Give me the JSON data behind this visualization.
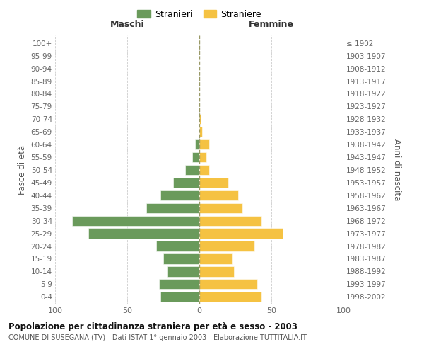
{
  "age_groups": [
    "0-4",
    "5-9",
    "10-14",
    "15-19",
    "20-24",
    "25-29",
    "30-34",
    "35-39",
    "40-44",
    "45-49",
    "50-54",
    "55-59",
    "60-64",
    "65-69",
    "70-74",
    "75-79",
    "80-84",
    "85-89",
    "90-94",
    "95-99",
    "100+"
  ],
  "birth_years": [
    "1998-2002",
    "1993-1997",
    "1988-1992",
    "1983-1987",
    "1978-1982",
    "1973-1977",
    "1968-1972",
    "1963-1967",
    "1958-1962",
    "1953-1957",
    "1948-1952",
    "1943-1947",
    "1938-1942",
    "1933-1937",
    "1928-1932",
    "1923-1927",
    "1918-1922",
    "1913-1917",
    "1908-1912",
    "1903-1907",
    "≤ 1902"
  ],
  "maschi": [
    27,
    28,
    22,
    25,
    30,
    77,
    88,
    37,
    27,
    18,
    10,
    5,
    3,
    0,
    0,
    0,
    0,
    0,
    0,
    0,
    0
  ],
  "femmine": [
    43,
    40,
    24,
    23,
    38,
    58,
    43,
    30,
    27,
    20,
    7,
    5,
    7,
    2,
    1,
    0,
    0,
    0,
    0,
    0,
    0
  ],
  "color_maschi": "#6a9a5b",
  "color_femmine": "#f5c242",
  "title": "Popolazione per cittadinanza straniera per età e sesso - 2003",
  "subtitle": "COMUNE DI SUSEGANA (TV) - Dati ISTAT 1° gennaio 2003 - Elaborazione TUTTITALIA.IT",
  "xlabel_left": "Maschi",
  "xlabel_right": "Femmine",
  "ylabel_left": "Fasce di età",
  "ylabel_right": "Anni di nascita",
  "legend_stranieri": "Stranieri",
  "legend_straniere": "Straniere",
  "xlim": 100,
  "background_color": "#ffffff"
}
